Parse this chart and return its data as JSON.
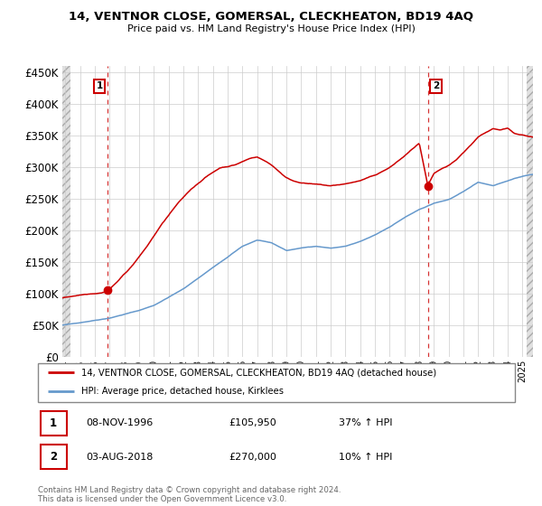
{
  "title": "14, VENTNOR CLOSE, GOMERSAL, CLECKHEATON, BD19 4AQ",
  "subtitle": "Price paid vs. HM Land Registry's House Price Index (HPI)",
  "ylabel_ticks": [
    "£0",
    "£50K",
    "£100K",
    "£150K",
    "£200K",
    "£250K",
    "£300K",
    "£350K",
    "£400K",
    "£450K"
  ],
  "ytick_values": [
    0,
    50000,
    100000,
    150000,
    200000,
    250000,
    300000,
    350000,
    400000,
    450000
  ],
  "ylim": [
    0,
    460000
  ],
  "xlim_start": 1993.8,
  "xlim_end": 2025.7,
  "legend_line1": "14, VENTNOR CLOSE, GOMERSAL, CLECKHEATON, BD19 4AQ (detached house)",
  "legend_line2": "HPI: Average price, detached house, Kirklees",
  "red_line_color": "#cc0000",
  "blue_line_color": "#6699cc",
  "marker_color": "#cc0000",
  "sale1_x": 1996.86,
  "sale1_y": 105950,
  "sale1_label": "1",
  "sale1_date": "08-NOV-1996",
  "sale1_price": "£105,950",
  "sale1_hpi": "37% ↑ HPI",
  "sale2_x": 2018.58,
  "sale2_y": 270000,
  "sale2_label": "2",
  "sale2_date": "03-AUG-2018",
  "sale2_price": "£270,000",
  "sale2_hpi": "10% ↑ HPI",
  "footer": "Contains HM Land Registry data © Crown copyright and database right 2024.\nThis data is licensed under the Open Government Licence v3.0.",
  "grid_color": "#cccccc",
  "background_color": "#ffffff"
}
